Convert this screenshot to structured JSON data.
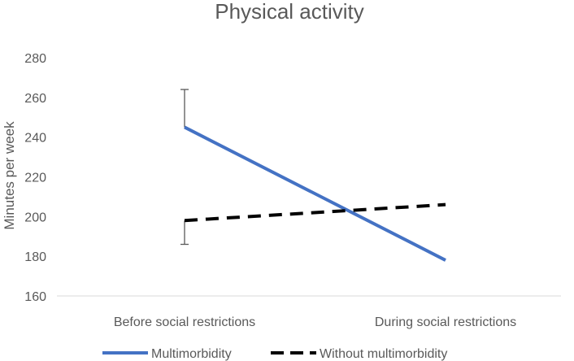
{
  "chart_data": {
    "type": "line",
    "title": "Physical activity",
    "xlabel": "",
    "ylabel": "Minutes per week",
    "categories": [
      "Before social restrictions",
      "During social restrictions"
    ],
    "ylim": [
      160,
      280
    ],
    "yticks": [
      160,
      180,
      200,
      220,
      240,
      260,
      280
    ],
    "grid": false,
    "legend_position": "bottom",
    "series": [
      {
        "name": "Multimorbidity",
        "values": [
          245,
          178
        ],
        "error_upper": [
          19,
          0
        ],
        "error_lower": [
          0,
          0
        ],
        "color": "#4472C4",
        "dash": "solid"
      },
      {
        "name": "Without multimorbidity",
        "values": [
          198,
          206
        ],
        "error_upper": [
          0,
          0
        ],
        "error_lower": [
          12,
          0
        ],
        "color": "#000000",
        "dash": "dashed"
      }
    ]
  },
  "colors": {
    "axis_line": "#d9d9d9",
    "text": "#595959",
    "error_bar": "#595959"
  }
}
